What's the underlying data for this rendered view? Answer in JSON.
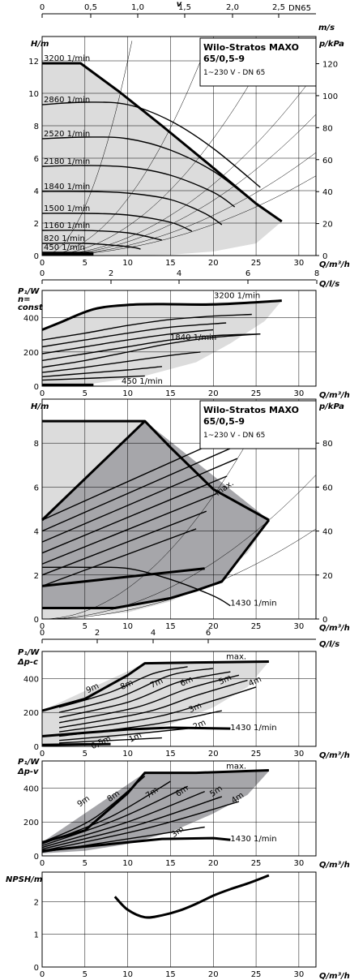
{
  "chart_data": [
    {
      "id": "p1",
      "type": "line",
      "xlabel": "Q/m³/h",
      "ylabel": "H/m",
      "y2label": "p/kPa",
      "top_axis": {
        "label": "v",
        "unit": "m/s",
        "extra": "DN65",
        "ticks": [
          "0",
          "0,5",
          "1,0",
          "1,5",
          "2,0",
          "2,5"
        ]
      },
      "title": "Wilo-Stratos MAXO",
      "title2": "65/0,5-9",
      "subtitle": "1~230 V - DN 65",
      "xlim": [
        0,
        32
      ],
      "ylim": [
        0,
        13.5
      ],
      "xticks": [
        0,
        5,
        10,
        15,
        20,
        25,
        30
      ],
      "yticks": [
        0,
        2,
        4,
        6,
        8,
        10,
        12
      ],
      "y2ticks": [
        0,
        20,
        40,
        60,
        80,
        100,
        120
      ],
      "max_curve": [
        [
          0,
          11.85
        ],
        [
          4.5,
          11.85
        ],
        [
          9,
          10.1
        ],
        [
          14,
          8.0
        ],
        [
          20,
          5.4
        ],
        [
          25,
          3.2
        ],
        [
          28,
          2.1
        ]
      ],
      "series": [
        {
          "name": "3200 1/min",
          "points": []
        },
        {
          "name": "2860 1/min",
          "points": [
            [
              0,
              9.3
            ],
            [
              5,
              9.45
            ],
            [
              10,
              9.3
            ],
            [
              15,
              8.3
            ],
            [
              20,
              6.6
            ],
            [
              25.5,
              4.2
            ]
          ]
        },
        {
          "name": "2520 1/min",
          "points": [
            [
              0,
              7.2
            ],
            [
              5,
              7.3
            ],
            [
              10,
              7.2
            ],
            [
              15,
              6.5
            ],
            [
              20,
              5.2
            ],
            [
              24,
              3.6
            ]
          ]
        },
        {
          "name": "2180 1/min",
          "points": [
            [
              0,
              5.5
            ],
            [
              5,
              5.55
            ],
            [
              10,
              5.45
            ],
            [
              15,
              4.95
            ],
            [
              20,
              3.9
            ],
            [
              22.5,
              3.0
            ]
          ]
        },
        {
          "name": "1840 1/min",
          "points": [
            [
              0,
              3.95
            ],
            [
              5,
              3.95
            ],
            [
              10,
              3.85
            ],
            [
              15,
              3.45
            ],
            [
              19,
              2.6
            ],
            [
              21,
              1.9
            ]
          ]
        },
        {
          "name": "1500 1/min",
          "points": [
            [
              0,
              2.6
            ],
            [
              5,
              2.6
            ],
            [
              10,
              2.5
            ],
            [
              15,
              2.05
            ],
            [
              17.5,
              1.5
            ]
          ]
        },
        {
          "name": "1160 1/min",
          "points": [
            [
              0,
              1.55
            ],
            [
              5,
              1.55
            ],
            [
              10,
              1.4
            ],
            [
              14,
              0.95
            ]
          ]
        },
        {
          "name": "820 1/min",
          "points": [
            [
              0,
              0.75
            ],
            [
              5,
              0.75
            ],
            [
              10,
              0.55
            ],
            [
              11.5,
              0.4
            ]
          ]
        },
        {
          "name": "450 1/min",
          "points": [
            [
              0,
              0.2
            ],
            [
              5,
              0.2
            ],
            [
              6,
              0.15
            ]
          ]
        }
      ]
    },
    {
      "id": "p2",
      "type": "line",
      "xlabel": "Q/m³/h",
      "ylabel": "P₁/W",
      "ylabel2": "n=",
      "ylabel3": "const",
      "top_axis": {
        "label": "Q/l/s",
        "ticks": [
          "0",
          "2",
          "4",
          "6",
          "8"
        ]
      },
      "xlim": [
        0,
        32
      ],
      "ylim": [
        0,
        560
      ],
      "xticks": [
        0,
        5,
        10,
        15,
        20,
        25,
        30
      ],
      "yticks": [
        0,
        200,
        400
      ],
      "annotations": [
        "3200 1/min",
        "1840 1/min",
        "450 1/min"
      ],
      "series": [
        {
          "name": "3200 1/min",
          "points": [
            [
              0,
              330
            ],
            [
              2,
              370
            ],
            [
              6,
              450
            ],
            [
              10,
              475
            ],
            [
              14,
              480
            ],
            [
              20,
              478
            ],
            [
              28,
              500
            ]
          ]
        },
        {
          "name": "1840 1/min",
          "points": [
            [
              0,
              110
            ],
            [
              5,
              150
            ],
            [
              10,
              200
            ],
            [
              15,
              250
            ],
            [
              20,
              285
            ],
            [
              25.5,
              305
            ]
          ]
        }
      ]
    },
    {
      "id": "p3",
      "type": "line",
      "xlabel": "Q/m³/h",
      "ylabel": "H/m",
      "y2label": "p/kPa",
      "title": "Wilo-Stratos MAXO",
      "title2": "65/0,5-9",
      "subtitle": "1~230 V - DN 65",
      "xlim": [
        0,
        32
      ],
      "ylim": [
        0,
        10
      ],
      "xticks": [
        0,
        5,
        10,
        15,
        20,
        25,
        30
      ],
      "yticks": [
        0,
        2,
        4,
        6,
        8
      ],
      "y2ticks": [
        0,
        20,
        40,
        60,
        80
      ],
      "annotations": [
        "max.",
        "1430 1/min"
      ],
      "max_curve": [
        [
          12,
          9
        ],
        [
          15,
          7.8
        ],
        [
          20,
          5.9
        ],
        [
          26.5,
          4.5
        ]
      ],
      "series": [
        {
          "name": "1430 1/min",
          "points": [
            [
              0,
              2.35
            ],
            [
              5,
              2.35
            ],
            [
              10,
              2.3
            ],
            [
              15,
              1.8
            ],
            [
              20,
              1.05
            ],
            [
              22,
              0.6
            ]
          ]
        }
      ]
    },
    {
      "id": "p4",
      "type": "line",
      "xlabel": "Q/m³/h",
      "ylabel": "P₁/W",
      "ylabel2": "Δp-c",
      "top_axis": {
        "label": "Q/l/s",
        "ticks": [
          "0",
          "2",
          "4",
          "6"
        ]
      },
      "xlim": [
        0,
        32
      ],
      "ylim": [
        0,
        560
      ],
      "xticks": [
        0,
        5,
        10,
        15,
        20,
        25,
        30
      ],
      "yticks": [
        0,
        200,
        400
      ],
      "annotations": [
        "max.",
        "1430 1/min"
      ],
      "series": [
        {
          "name": "9m",
          "points": []
        },
        {
          "name": "8m",
          "points": []
        },
        {
          "name": "7m",
          "points": []
        },
        {
          "name": "6m",
          "points": []
        },
        {
          "name": "5m",
          "points": []
        },
        {
          "name": "4m",
          "points": []
        },
        {
          "name": "3m",
          "points": []
        },
        {
          "name": "2m",
          "points": []
        },
        {
          "name": "1m",
          "points": []
        },
        {
          "name": "0,5m",
          "points": []
        }
      ]
    },
    {
      "id": "p5",
      "type": "line",
      "xlabel": "Q/m³/h",
      "ylabel": "P₁/W",
      "ylabel2": "Δp-v",
      "xlim": [
        0,
        32
      ],
      "ylim": [
        0,
        560
      ],
      "xticks": [
        0,
        5,
        10,
        15,
        20,
        25,
        30
      ],
      "yticks": [
        0,
        200,
        400
      ],
      "annotations": [
        "max.",
        "1430 1/min"
      ],
      "series": [
        {
          "name": "9m",
          "points": []
        },
        {
          "name": "8m",
          "points": []
        },
        {
          "name": "7m",
          "points": []
        },
        {
          "name": "6m",
          "points": []
        },
        {
          "name": "5m",
          "points": []
        },
        {
          "name": "4m",
          "points": []
        },
        {
          "name": "3m",
          "points": []
        }
      ]
    },
    {
      "id": "p6",
      "type": "line",
      "xlabel": "Q/m³/h",
      "ylabel": "NPSH/m",
      "xlim": [
        0,
        32
      ],
      "ylim": [
        0,
        2.9
      ],
      "xticks": [
        0,
        5,
        10,
        15,
        20,
        25,
        30
      ],
      "yticks": [
        0,
        1,
        2
      ],
      "series": [
        {
          "name": "",
          "points": [
            [
              8.5,
              2.15
            ],
            [
              10,
              1.75
            ],
            [
              12,
              1.52
            ],
            [
              14,
              1.58
            ],
            [
              16,
              1.72
            ],
            [
              18,
              1.93
            ],
            [
              20,
              2.18
            ],
            [
              22,
              2.38
            ],
            [
              24,
              2.55
            ],
            [
              26.5,
              2.8
            ]
          ]
        }
      ]
    }
  ]
}
